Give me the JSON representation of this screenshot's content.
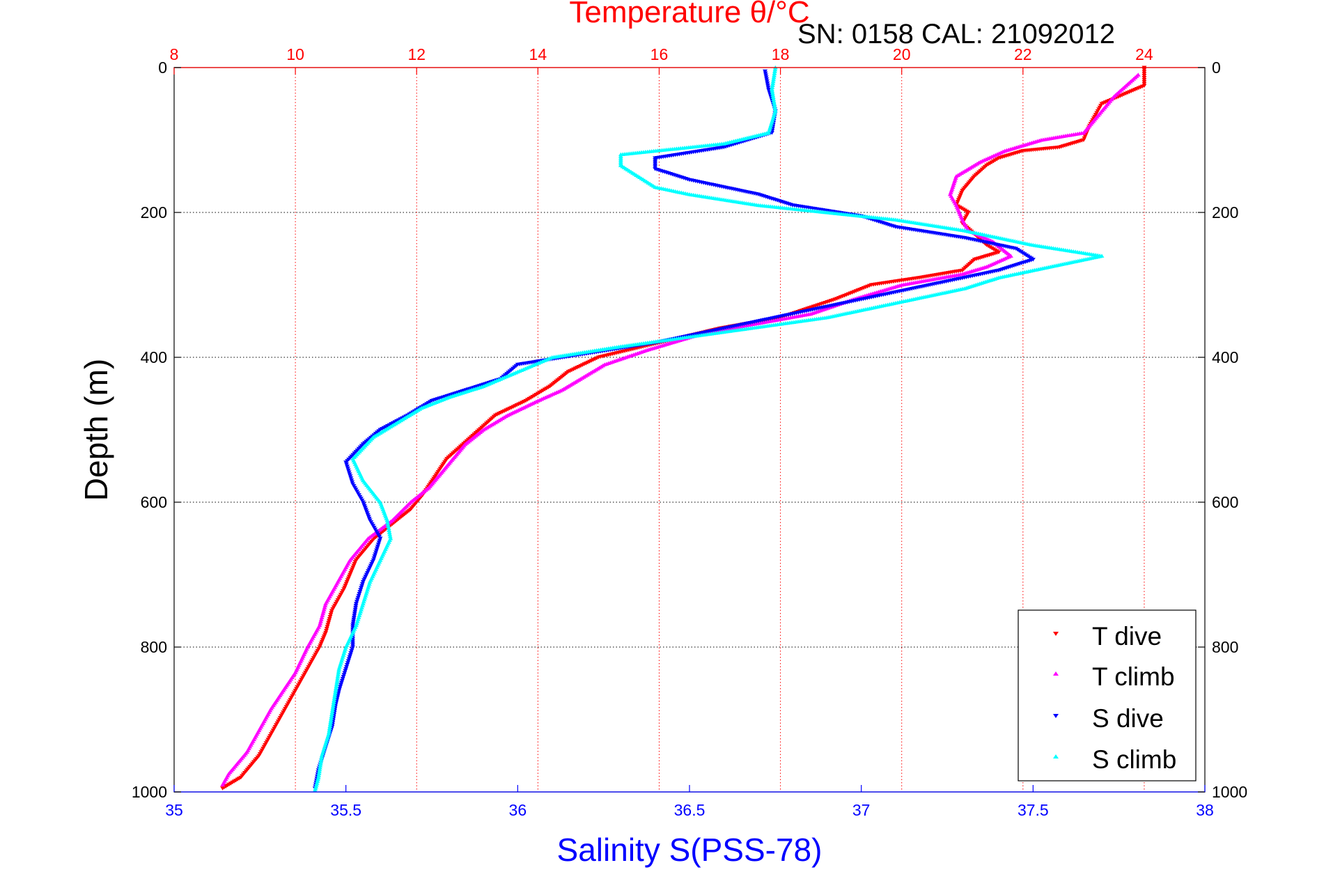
{
  "chart_data": {
    "type": "scatter",
    "title": "Temperature θ/°C",
    "subtitle": "SN: 0158  CAL: 21092012",
    "xlabel": "Salinity S(PSS-78)",
    "x2label": "Temperature θ/°C",
    "ylabel": "Depth (m)",
    "xlim": [
      35,
      38
    ],
    "x2lim": [
      8,
      25
    ],
    "ylim": [
      0,
      1000
    ],
    "y_reversed": true,
    "xticks": [
      "35",
      "35.5",
      "36",
      "36.5",
      "37",
      "37.5",
      "38"
    ],
    "x2ticks": [
      "8",
      "10",
      "12",
      "14",
      "16",
      "18",
      "20",
      "22",
      "24"
    ],
    "yticks": [
      "0",
      "200",
      "400",
      "600",
      "800",
      "1000"
    ],
    "grid": true,
    "legend_placement": "bottom-right",
    "colors": {
      "t_axis": "#ff0000",
      "s_axis": "#0000ff",
      "t_dive": "#ff0000",
      "t_climb": "#ff00ff",
      "s_dive": "#0000ff",
      "s_climb": "#00ffff"
    },
    "series": [
      {
        "name": "T dive",
        "axis": "temperature",
        "marker": "triangle-down",
        "points": [
          [
            24.0,
            0
          ],
          [
            24.0,
            25
          ],
          [
            23.3,
            50
          ],
          [
            23.1,
            80
          ],
          [
            23.0,
            100
          ],
          [
            22.6,
            110
          ],
          [
            22.0,
            115
          ],
          [
            21.6,
            125
          ],
          [
            21.4,
            135
          ],
          [
            21.2,
            150
          ],
          [
            21.0,
            170
          ],
          [
            20.9,
            190
          ],
          [
            21.1,
            200
          ],
          [
            21.0,
            215
          ],
          [
            21.2,
            230
          ],
          [
            21.4,
            245
          ],
          [
            21.6,
            255
          ],
          [
            21.2,
            265
          ],
          [
            21.0,
            280
          ],
          [
            20.3,
            290
          ],
          [
            19.5,
            300
          ],
          [
            18.9,
            320
          ],
          [
            18.0,
            345
          ],
          [
            17.0,
            360
          ],
          [
            16.0,
            380
          ],
          [
            15.0,
            400
          ],
          [
            14.5,
            420
          ],
          [
            14.2,
            440
          ],
          [
            13.8,
            460
          ],
          [
            13.3,
            480
          ],
          [
            12.9,
            510
          ],
          [
            12.5,
            540
          ],
          [
            12.3,
            565
          ],
          [
            12.1,
            590
          ],
          [
            11.9,
            610
          ],
          [
            11.6,
            630
          ],
          [
            11.3,
            650
          ],
          [
            11.0,
            680
          ],
          [
            10.8,
            720
          ],
          [
            10.6,
            750
          ],
          [
            10.5,
            780
          ],
          [
            10.4,
            800
          ],
          [
            10.2,
            830
          ],
          [
            10.0,
            860
          ],
          [
            9.8,
            890
          ],
          [
            9.6,
            920
          ],
          [
            9.4,
            950
          ],
          [
            9.1,
            980
          ],
          [
            8.8,
            995
          ]
        ]
      },
      {
        "name": "T climb",
        "axis": "temperature",
        "marker": "triangle-up",
        "points": [
          [
            23.9,
            10
          ],
          [
            23.5,
            40
          ],
          [
            23.2,
            70
          ],
          [
            23.0,
            90
          ],
          [
            22.3,
            100
          ],
          [
            21.7,
            115
          ],
          [
            21.3,
            130
          ],
          [
            20.9,
            150
          ],
          [
            20.8,
            175
          ],
          [
            20.9,
            190
          ],
          [
            21.0,
            210
          ],
          [
            21.1,
            225
          ],
          [
            21.5,
            240
          ],
          [
            21.8,
            260
          ],
          [
            21.4,
            275
          ],
          [
            21.0,
            285
          ],
          [
            20.0,
            300
          ],
          [
            19.2,
            320
          ],
          [
            18.5,
            340
          ],
          [
            17.5,
            355
          ],
          [
            16.6,
            370
          ],
          [
            15.8,
            390
          ],
          [
            15.1,
            410
          ],
          [
            14.7,
            430
          ],
          [
            14.4,
            445
          ],
          [
            14.0,
            460
          ],
          [
            13.5,
            480
          ],
          [
            13.1,
            500
          ],
          [
            12.8,
            520
          ],
          [
            12.6,
            540
          ],
          [
            12.4,
            560
          ],
          [
            12.2,
            580
          ],
          [
            11.9,
            600
          ],
          [
            11.6,
            625
          ],
          [
            11.2,
            650
          ],
          [
            10.9,
            680
          ],
          [
            10.7,
            710
          ],
          [
            10.5,
            740
          ],
          [
            10.4,
            770
          ],
          [
            10.2,
            800
          ],
          [
            10.0,
            835
          ],
          [
            9.8,
            860
          ],
          [
            9.6,
            885
          ],
          [
            9.4,
            915
          ],
          [
            9.2,
            945
          ],
          [
            8.9,
            975
          ],
          [
            8.8,
            990
          ]
        ]
      },
      {
        "name": "S dive",
        "axis": "salinity",
        "marker": "triangle-down",
        "points": [
          [
            36.72,
            5
          ],
          [
            36.73,
            30
          ],
          [
            36.75,
            60
          ],
          [
            36.74,
            90
          ],
          [
            36.6,
            110
          ],
          [
            36.4,
            125
          ],
          [
            36.4,
            140
          ],
          [
            36.5,
            155
          ],
          [
            36.6,
            165
          ],
          [
            36.7,
            175
          ],
          [
            36.8,
            190
          ],
          [
            37.0,
            205
          ],
          [
            37.1,
            220
          ],
          [
            37.3,
            235
          ],
          [
            37.45,
            250
          ],
          [
            37.5,
            265
          ],
          [
            37.4,
            280
          ],
          [
            37.2,
            300
          ],
          [
            37.0,
            320
          ],
          [
            36.8,
            340
          ],
          [
            36.6,
            360
          ],
          [
            36.4,
            380
          ],
          [
            36.2,
            395
          ],
          [
            36.0,
            410
          ],
          [
            35.95,
            430
          ],
          [
            35.85,
            445
          ],
          [
            35.75,
            460
          ],
          [
            35.68,
            480
          ],
          [
            35.6,
            500
          ],
          [
            35.55,
            520
          ],
          [
            35.5,
            545
          ],
          [
            35.52,
            575
          ],
          [
            35.55,
            600
          ],
          [
            35.57,
            625
          ],
          [
            35.6,
            650
          ],
          [
            35.58,
            680
          ],
          [
            35.55,
            710
          ],
          [
            35.53,
            740
          ],
          [
            35.52,
            770
          ],
          [
            35.52,
            800
          ],
          [
            35.5,
            830
          ],
          [
            35.48,
            860
          ],
          [
            35.47,
            880
          ],
          [
            35.46,
            910
          ],
          [
            35.44,
            940
          ],
          [
            35.42,
            970
          ],
          [
            35.41,
            995
          ]
        ]
      },
      {
        "name": "S climb",
        "axis": "salinity",
        "marker": "triangle-up",
        "points": [
          [
            36.75,
            0
          ],
          [
            36.74,
            30
          ],
          [
            36.75,
            60
          ],
          [
            36.73,
            90
          ],
          [
            36.6,
            105
          ],
          [
            36.3,
            120
          ],
          [
            36.3,
            135
          ],
          [
            36.35,
            150
          ],
          [
            36.4,
            165
          ],
          [
            36.5,
            175
          ],
          [
            36.7,
            190
          ],
          [
            36.9,
            200
          ],
          [
            37.1,
            210
          ],
          [
            37.3,
            225
          ],
          [
            37.5,
            245
          ],
          [
            37.7,
            260
          ],
          [
            37.55,
            275
          ],
          [
            37.4,
            290
          ],
          [
            37.3,
            305
          ],
          [
            37.1,
            325
          ],
          [
            36.9,
            345
          ],
          [
            36.6,
            365
          ],
          [
            36.3,
            385
          ],
          [
            36.1,
            400
          ],
          [
            36.0,
            420
          ],
          [
            35.9,
            440
          ],
          [
            35.8,
            455
          ],
          [
            35.72,
            470
          ],
          [
            35.65,
            490
          ],
          [
            35.58,
            510
          ],
          [
            35.52,
            540
          ],
          [
            35.55,
            570
          ],
          [
            35.6,
            600
          ],
          [
            35.62,
            625
          ],
          [
            35.63,
            650
          ],
          [
            35.6,
            680
          ],
          [
            35.57,
            710
          ],
          [
            35.55,
            740
          ],
          [
            35.53,
            770
          ],
          [
            35.5,
            800
          ],
          [
            35.48,
            830
          ],
          [
            35.47,
            860
          ],
          [
            35.46,
            890
          ],
          [
            35.45,
            920
          ],
          [
            35.43,
            950
          ],
          [
            35.42,
            980
          ],
          [
            35.41,
            998
          ]
        ]
      }
    ]
  }
}
